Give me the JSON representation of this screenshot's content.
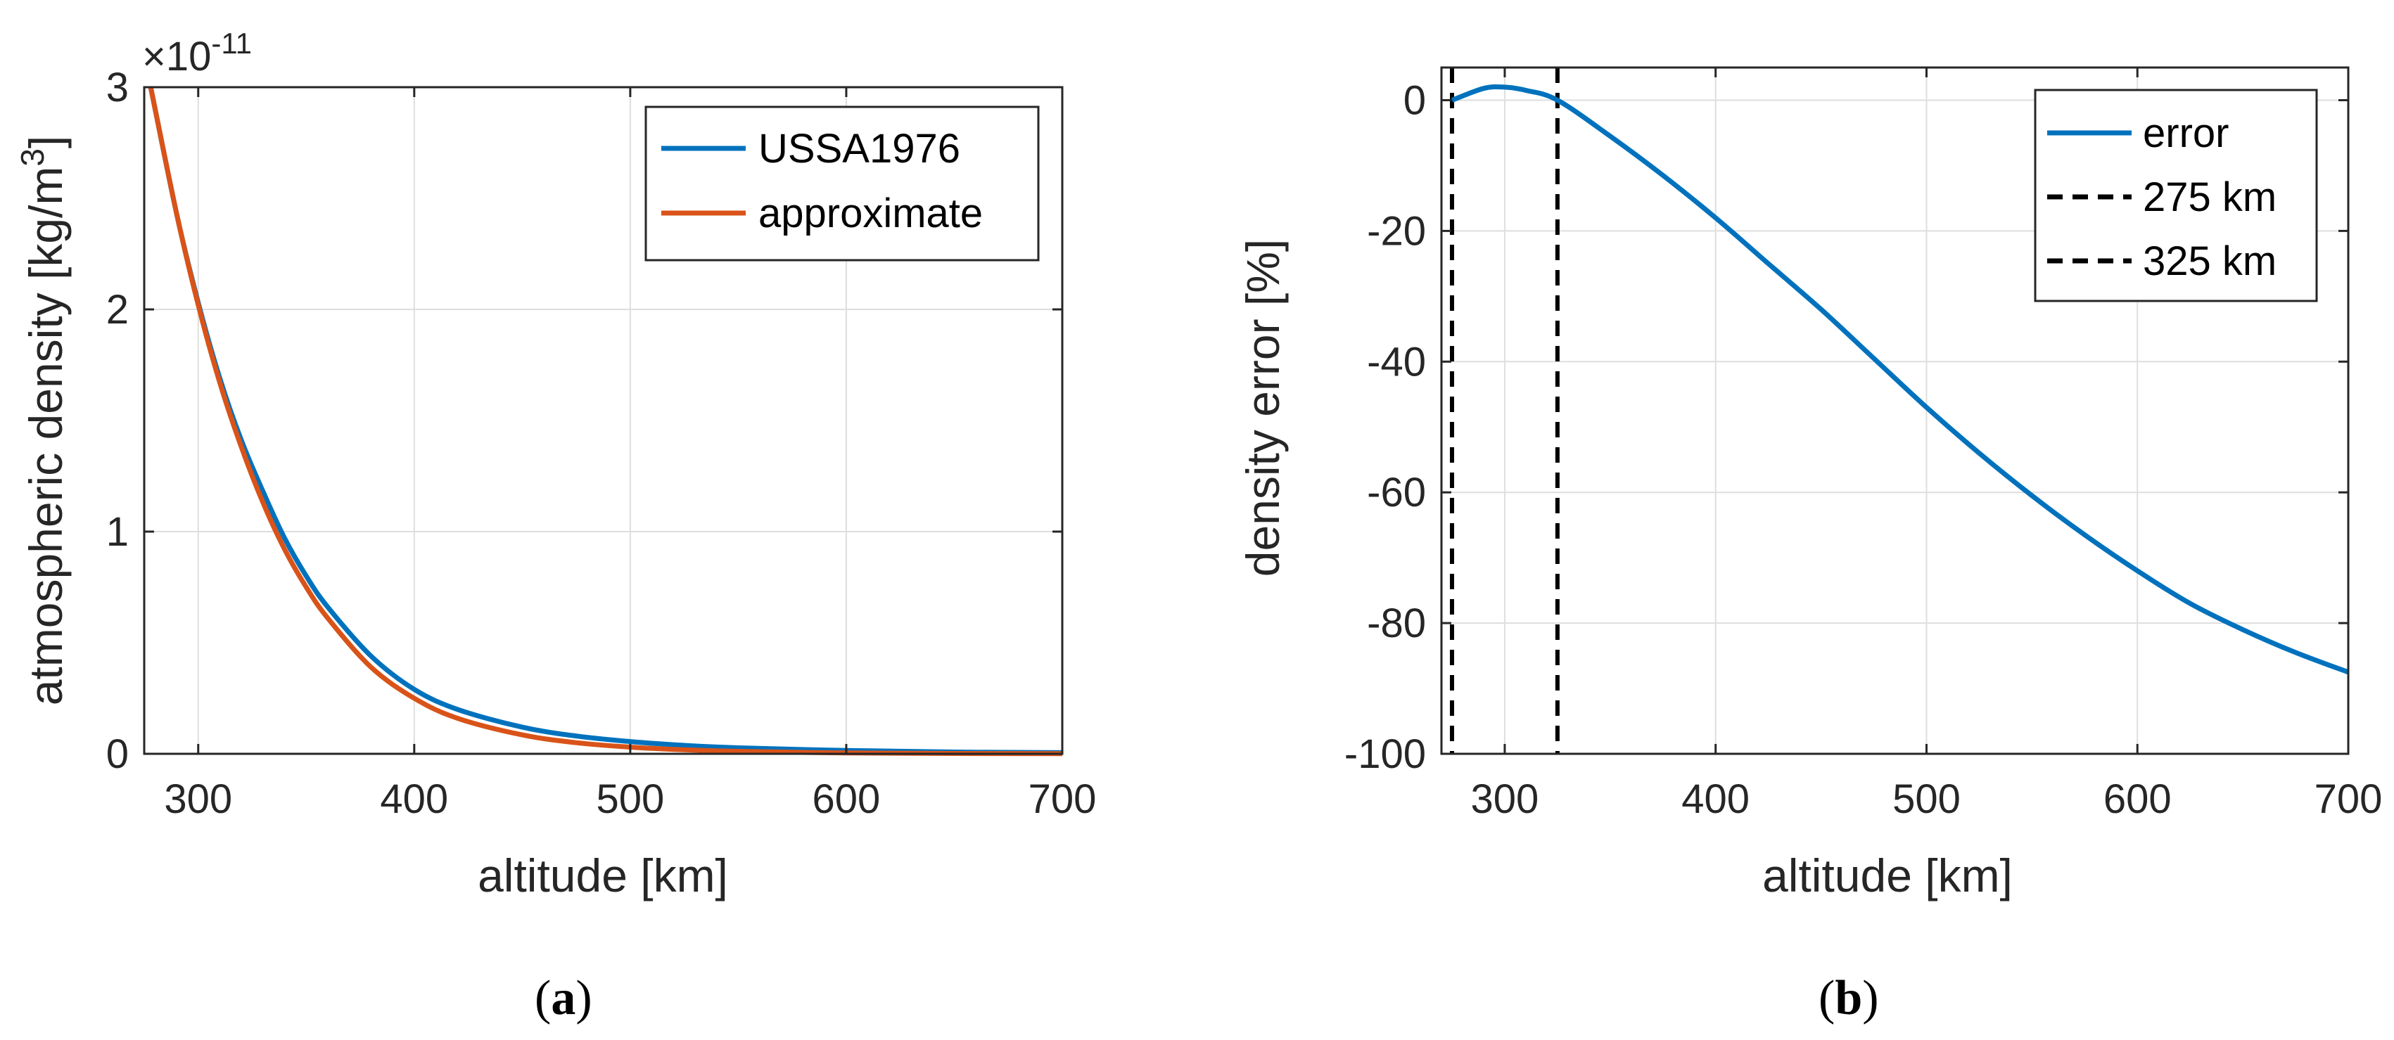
{
  "panels": [
    {
      "open": "(",
      "letter": "a",
      "close": ")"
    },
    {
      "open": "(",
      "letter": "b",
      "close": ")"
    }
  ],
  "chart_data": [
    {
      "type": "line",
      "xlabel": "altitude [km]",
      "ylabel": "atmospheric density [kg/m",
      "ylabel_sup": "3",
      "ylabel_end": "]",
      "exponent_prefix": "×10",
      "exponent_power": "-11",
      "xlim": [
        275,
        700
      ],
      "ylim": [
        0,
        3
      ],
      "xticks": [
        300,
        400,
        500,
        600,
        700
      ],
      "yticks": [
        0,
        1,
        2,
        3
      ],
      "grid": true,
      "legend_position": "top-right",
      "x": [
        278,
        290,
        300,
        310,
        320,
        330,
        340,
        350,
        360,
        380,
        400,
        420,
        450,
        475,
        500,
        525,
        550,
        600,
        650,
        700
      ],
      "series": [
        {
          "name": "USSA1976",
          "color": "#0072BD",
          "values": [
            3.0,
            2.43,
            2.03,
            1.69,
            1.41,
            1.18,
            0.97,
            0.8,
            0.66,
            0.44,
            0.29,
            0.2,
            0.12,
            0.08,
            0.055,
            0.038,
            0.027,
            0.015,
            0.008,
            0.005
          ]
        },
        {
          "name": "approximate",
          "color": "#D95319",
          "values": [
            3.0,
            2.43,
            2.02,
            1.67,
            1.38,
            1.13,
            0.92,
            0.75,
            0.61,
            0.39,
            0.25,
            0.16,
            0.085,
            0.05,
            0.03,
            0.018,
            0.011,
            0.004,
            0.0015,
            0.0005
          ]
        }
      ]
    },
    {
      "type": "line",
      "xlabel": "altitude [km]",
      "ylabel": "density error [%]",
      "xlim": [
        270,
        700
      ],
      "ylim": [
        -100,
        5
      ],
      "xticks": [
        300,
        400,
        500,
        600,
        700
      ],
      "yticks": [
        0,
        -20,
        -40,
        -60,
        -80,
        -100
      ],
      "grid": true,
      "legend_position": "top-right",
      "x": [
        275,
        290,
        300,
        310,
        325,
        350,
        375,
        400,
        425,
        450,
        475,
        500,
        525,
        550,
        575,
        600,
        625,
        650,
        675,
        700
      ],
      "series": [
        {
          "name": "error",
          "color": "#0072BD",
          "values": [
            0,
            1.8,
            2.0,
            1.5,
            0,
            -5.5,
            -11.5,
            -18.0,
            -25.0,
            -32.0,
            -39.5,
            -47.0,
            -54.0,
            -60.5,
            -66.5,
            -72.0,
            -77.0,
            -81.0,
            -84.5,
            -87.5
          ]
        }
      ],
      "vlines": [
        {
          "name": "275 km",
          "x": 275,
          "color": "#000000"
        },
        {
          "name": "325 km",
          "x": 325,
          "color": "#000000"
        }
      ]
    }
  ]
}
